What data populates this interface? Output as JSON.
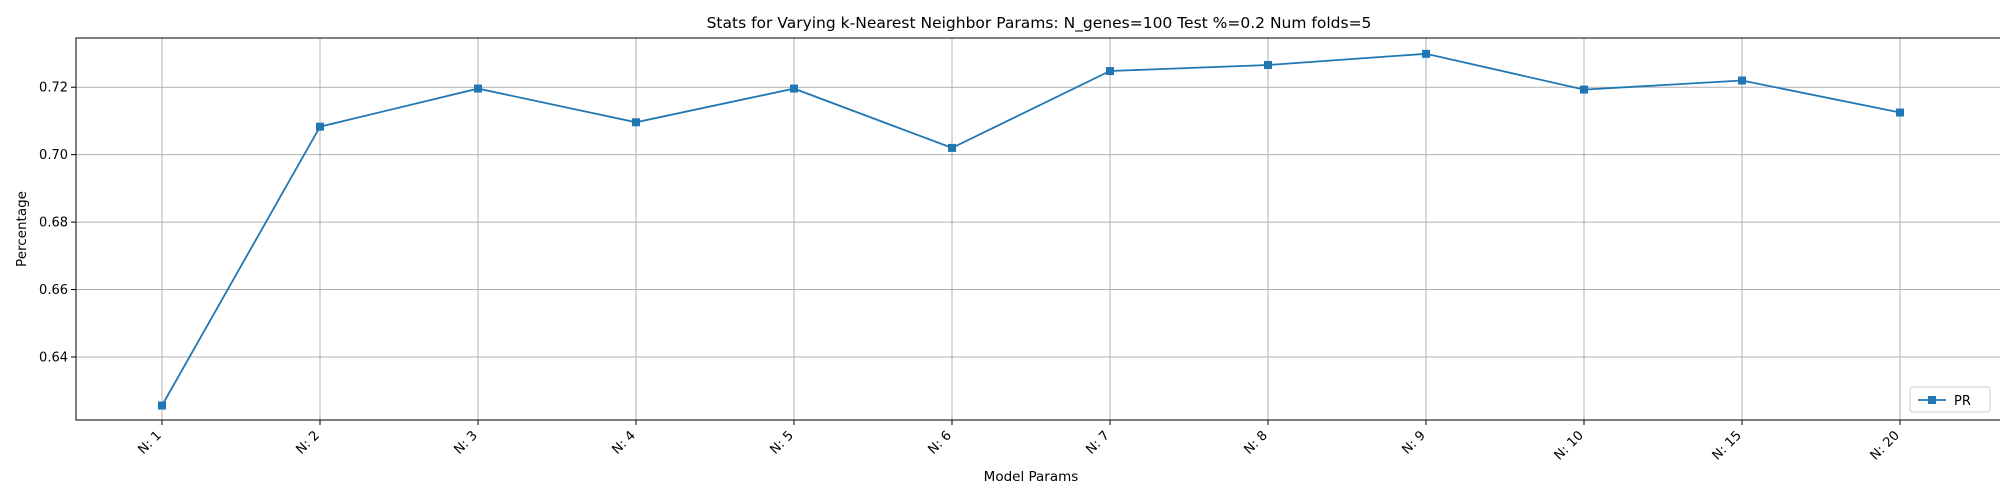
{
  "chart_data": {
    "type": "line",
    "title": "Stats for Varying k-Nearest Neighbor Params: N_genes=100 Test %=0.2 Num folds=5",
    "xlabel": "Model Params",
    "ylabel": "Percentage",
    "categories": [
      "N: 1",
      "N: 2",
      "N: 3",
      "N: 4",
      "N: 5",
      "N: 6",
      "N: 7",
      "N: 8",
      "N: 9",
      "N: 10",
      "N: 15",
      "N: 20"
    ],
    "series": [
      {
        "name": "PR",
        "color": "#1f77b4",
        "marker": "square",
        "values": [
          0.6256,
          0.7083,
          0.7196,
          0.7096,
          0.7196,
          0.702,
          0.7248,
          0.7266,
          0.7299,
          0.7193,
          0.722,
          0.7125
        ]
      }
    ],
    "yticks": [
      0.64,
      0.66,
      0.68,
      0.7,
      0.72
    ],
    "ytick_labels": [
      "0.64",
      "0.66",
      "0.68",
      "0.70",
      "0.72"
    ],
    "ylim": [
      0.6213,
      0.7346
    ],
    "grid": true,
    "legend": "lower-right",
    "xtick_rotation": 45
  }
}
